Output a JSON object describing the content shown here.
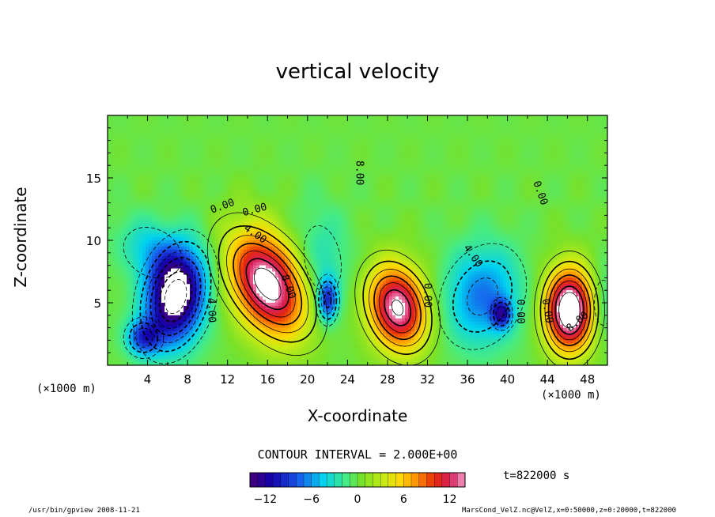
{
  "chart_data": {
    "type": "heatmap",
    "title": "vertical velocity",
    "xlabel": "X-coordinate",
    "ylabel": "Z-coordinate",
    "x_unit_label_left": "(×1000 m)",
    "x_unit_label_right": "(×1000 m)",
    "y_unit_label": "(×1000 m)",
    "xlim": [
      0,
      50
    ],
    "ylim": [
      0,
      20
    ],
    "x_ticks": [
      4,
      8,
      12,
      16,
      20,
      24,
      28,
      32,
      36,
      40,
      44,
      48
    ],
    "y_ticks": [
      5,
      10,
      15
    ],
    "contour_interval_text": "CONTOUR INTERVAL = 2.000E+00",
    "time_text": "t=822000 s",
    "colorbar": {
      "min": -14,
      "max": 14,
      "step": 1,
      "tick_values": [
        -12,
        -6,
        0,
        6,
        12
      ],
      "tick_labels": [
        "−12",
        "−6",
        "0",
        "6",
        "12"
      ]
    },
    "contour_labels": [
      {
        "text": "0.00",
        "x": 11.6,
        "y": 12.5,
        "angle": -20
      },
      {
        "text": "0.00",
        "x": 14.8,
        "y": 12.2,
        "angle": -15
      },
      {
        "text": "4.00",
        "x": 14.6,
        "y": 10.3,
        "angle": 35
      },
      {
        "text": "8.00",
        "x": 17.8,
        "y": 6.2,
        "angle": 70
      },
      {
        "text": "4.00",
        "x": 10.1,
        "y": 4.4,
        "angle": 90
      },
      {
        "text": "8.00",
        "x": 24.9,
        "y": 15.4,
        "angle": 90
      },
      {
        "text": "0.00",
        "x": 31.7,
        "y": 5.6,
        "angle": 90
      },
      {
        "text": "4.00",
        "x": 36.3,
        "y": 8.6,
        "angle": 55
      },
      {
        "text": "0.00",
        "x": 41.0,
        "y": 4.3,
        "angle": 90
      },
      {
        "text": "0.00",
        "x": 43.0,
        "y": 13.7,
        "angle": 70
      },
      {
        "text": "0.00",
        "x": 43.7,
        "y": 4.3,
        "angle": 80
      },
      {
        "text": "8.00",
        "x": 47.2,
        "y": 3.3,
        "angle": -40
      }
    ],
    "cells": [
      {
        "name": "downdraft-left",
        "cx": 6.8,
        "cy": 5.5,
        "sx": 2.0,
        "sy": 2.7,
        "amp": -16,
        "rot": -15
      },
      {
        "name": "downdraft-left-low",
        "cx": 3.6,
        "cy": 2.2,
        "sx": 1.2,
        "sy": 1.0,
        "amp": -8,
        "rot": 0
      },
      {
        "name": "downdraft-left-upper",
        "cx": 4.5,
        "cy": 9.0,
        "sx": 2.6,
        "sy": 1.6,
        "amp": -4,
        "rot": -30
      },
      {
        "name": "updraft-1",
        "cx": 16.0,
        "cy": 6.5,
        "sx": 2.3,
        "sy": 3.2,
        "amp": 15.5,
        "rot": 35
      },
      {
        "name": "downdraft-2",
        "cx": 22.0,
        "cy": 5.2,
        "sx": 0.7,
        "sy": 1.2,
        "amp": -9,
        "rot": 0
      },
      {
        "name": "downdraft-2-upper",
        "cx": 21.5,
        "cy": 8.5,
        "sx": 2.0,
        "sy": 3.0,
        "amp": -3,
        "rot": 10
      },
      {
        "name": "updraft-2",
        "cx": 29.0,
        "cy": 4.6,
        "sx": 2.0,
        "sy": 2.4,
        "amp": 14.5,
        "rot": 20
      },
      {
        "name": "downdraft-3",
        "cx": 37.5,
        "cy": 5.5,
        "sx": 2.6,
        "sy": 2.8,
        "amp": -7,
        "rot": -25
      },
      {
        "name": "downdraft-3-core",
        "cx": 39.4,
        "cy": 4.1,
        "sx": 0.7,
        "sy": 0.8,
        "amp": -8,
        "rot": 0
      },
      {
        "name": "updraft-3",
        "cx": 46.2,
        "cy": 4.4,
        "sx": 1.7,
        "sy": 2.3,
        "amp": 17,
        "rot": 0
      },
      {
        "name": "far-right-low",
        "cx": 49.6,
        "cy": 5.0,
        "sx": 1.0,
        "sy": 2.0,
        "amp": -3,
        "rot": 0
      }
    ]
  },
  "footer": {
    "left": "/usr/bin/gpview  2008-11-21",
    "right": "MarsCond_VelZ.nc@VelZ,x=0:50000,z=0:20000,t=822000"
  }
}
